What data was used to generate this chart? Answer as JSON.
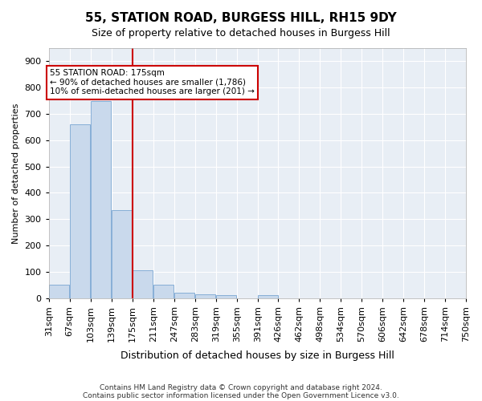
{
  "title": "55, STATION ROAD, BURGESS HILL, RH15 9DY",
  "subtitle": "Size of property relative to detached houses in Burgess Hill",
  "xlabel": "Distribution of detached houses by size in Burgess Hill",
  "ylabel": "Number of detached properties",
  "footer_line1": "Contains HM Land Registry data © Crown copyright and database right 2024.",
  "footer_line2": "Contains public sector information licensed under the Open Government Licence v3.0.",
  "annotation_line1": "55 STATION ROAD: 175sqm",
  "annotation_line2": "← 90% of detached houses are smaller (1,786)",
  "annotation_line3": "10% of semi-detached houses are larger (201) →",
  "property_size": 175,
  "bar_color": "#c9d9ec",
  "bar_edge_color": "#6699cc",
  "vline_color": "#cc0000",
  "annotation_box_color": "#cc0000",
  "background_color": "#e8eef5",
  "bins": [
    31,
    67,
    103,
    139,
    175,
    211,
    247,
    283,
    319,
    355,
    391,
    426,
    462,
    498,
    534,
    570,
    606,
    642,
    678,
    714,
    750
  ],
  "bin_labels": [
    "31sqm",
    "67sqm",
    "103sqm",
    "139sqm",
    "175sqm",
    "211sqm",
    "247sqm",
    "283sqm",
    "319sqm",
    "355sqm",
    "391sqm",
    "426sqm",
    "462sqm",
    "498sqm",
    "534sqm",
    "570sqm",
    "606sqm",
    "642sqm",
    "678sqm",
    "714sqm",
    "750sqm"
  ],
  "bar_heights": [
    50,
    660,
    750,
    335,
    105,
    50,
    22,
    15,
    10,
    0,
    10,
    0,
    0,
    0,
    0,
    0,
    0,
    0,
    0,
    0
  ],
  "ylim": [
    0,
    950
  ],
  "yticks": [
    0,
    100,
    200,
    300,
    400,
    500,
    600,
    700,
    800,
    900
  ]
}
